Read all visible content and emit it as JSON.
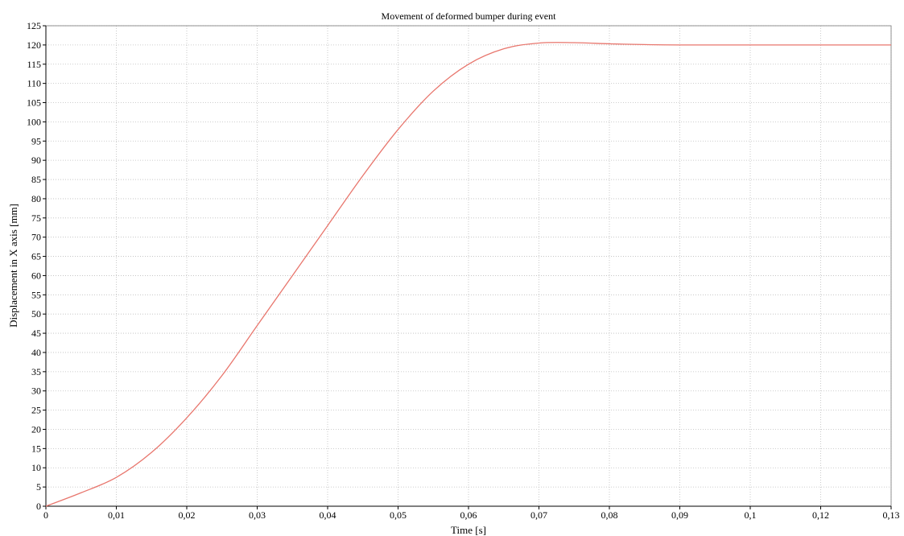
{
  "chart_data": {
    "type": "line",
    "title": "Movement of deformed bumper during event",
    "xlabel": "Time [s]",
    "ylabel": "Displacement in X axis [mm]",
    "x_ticks": [
      "0",
      "0,01",
      "0,02",
      "0,03",
      "0,04",
      "0,05",
      "0,06",
      "0,07",
      "0,08",
      "0,09",
      "0,1",
      "0,12",
      "0,13"
    ],
    "y_ticks": [
      0,
      5,
      10,
      15,
      20,
      25,
      30,
      35,
      40,
      45,
      50,
      55,
      60,
      65,
      70,
      75,
      80,
      85,
      90,
      95,
      100,
      105,
      110,
      115,
      120,
      125
    ],
    "ylim": [
      0,
      125
    ],
    "grid": true,
    "line_color": "#e8766d",
    "series": [
      {
        "x": [
          0,
          0.005,
          0.01,
          0.015,
          0.02,
          0.025,
          0.03,
          0.035,
          0.04,
          0.045,
          0.05,
          0.055,
          0.06,
          0.065,
          0.07,
          0.075,
          0.08,
          0.085,
          0.09,
          0.1,
          0.12,
          0.13
        ],
        "y": [
          0,
          3.5,
          7.5,
          14,
          23,
          34,
          47,
          60,
          73,
          86,
          98,
          108,
          115,
          119,
          120.5,
          120.6,
          120.3,
          120.1,
          120,
          120,
          120,
          120
        ]
      }
    ]
  }
}
